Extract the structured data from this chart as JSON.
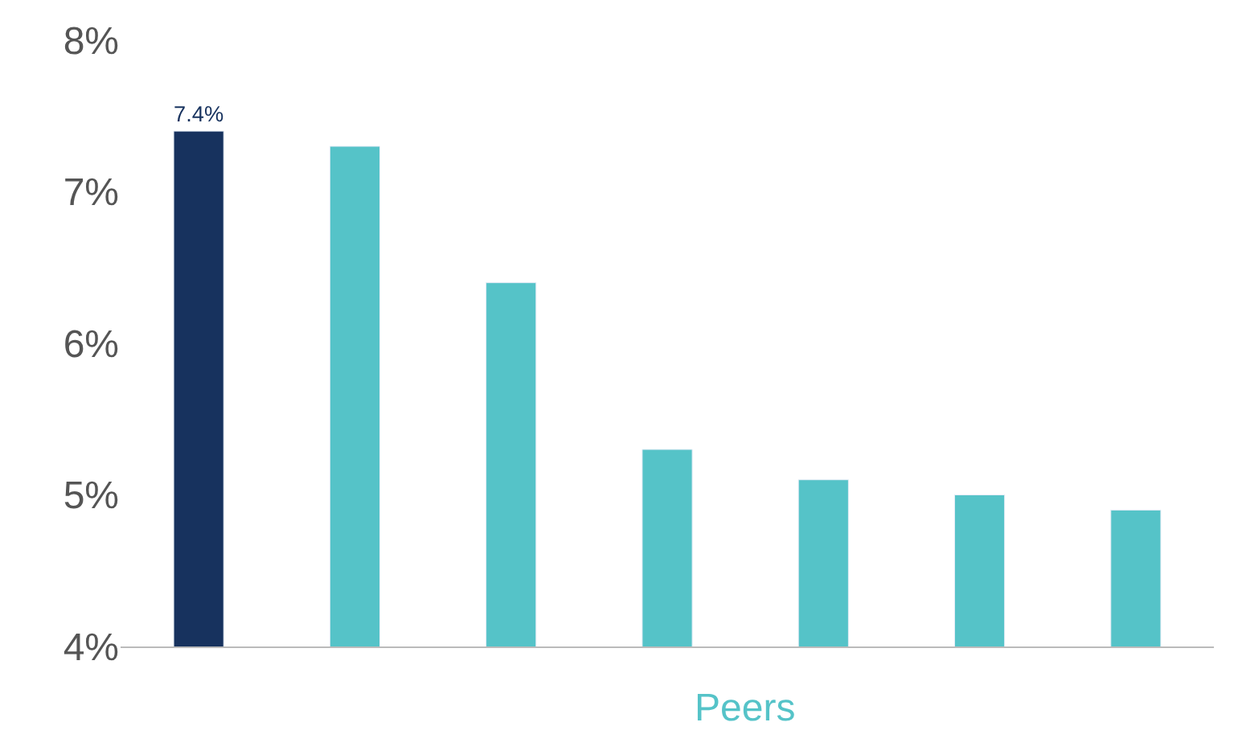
{
  "chart_data": {
    "type": "bar",
    "categories": [
      null,
      null,
      null,
      null,
      null,
      null,
      null
    ],
    "values": [
      7.4,
      7.3,
      6.4,
      5.3,
      5.1,
      5.0,
      4.9
    ],
    "colors": [
      "#17325e",
      "#55c3c8",
      "#55c3c8",
      "#55c3c8",
      "#55c3c8",
      "#55c3c8",
      "#55c3c8"
    ],
    "value_labels": [
      "7.4%",
      null,
      null,
      null,
      null,
      null,
      null
    ],
    "ylim": [
      4,
      8
    ],
    "yticks": [
      {
        "value": 4,
        "label": "4%"
      },
      {
        "value": 5,
        "label": "5%"
      },
      {
        "value": 6,
        "label": "6%"
      },
      {
        "value": 7,
        "label": "7%"
      },
      {
        "value": 8,
        "label": "8%"
      }
    ],
    "annotations": [
      "Peers"
    ]
  }
}
